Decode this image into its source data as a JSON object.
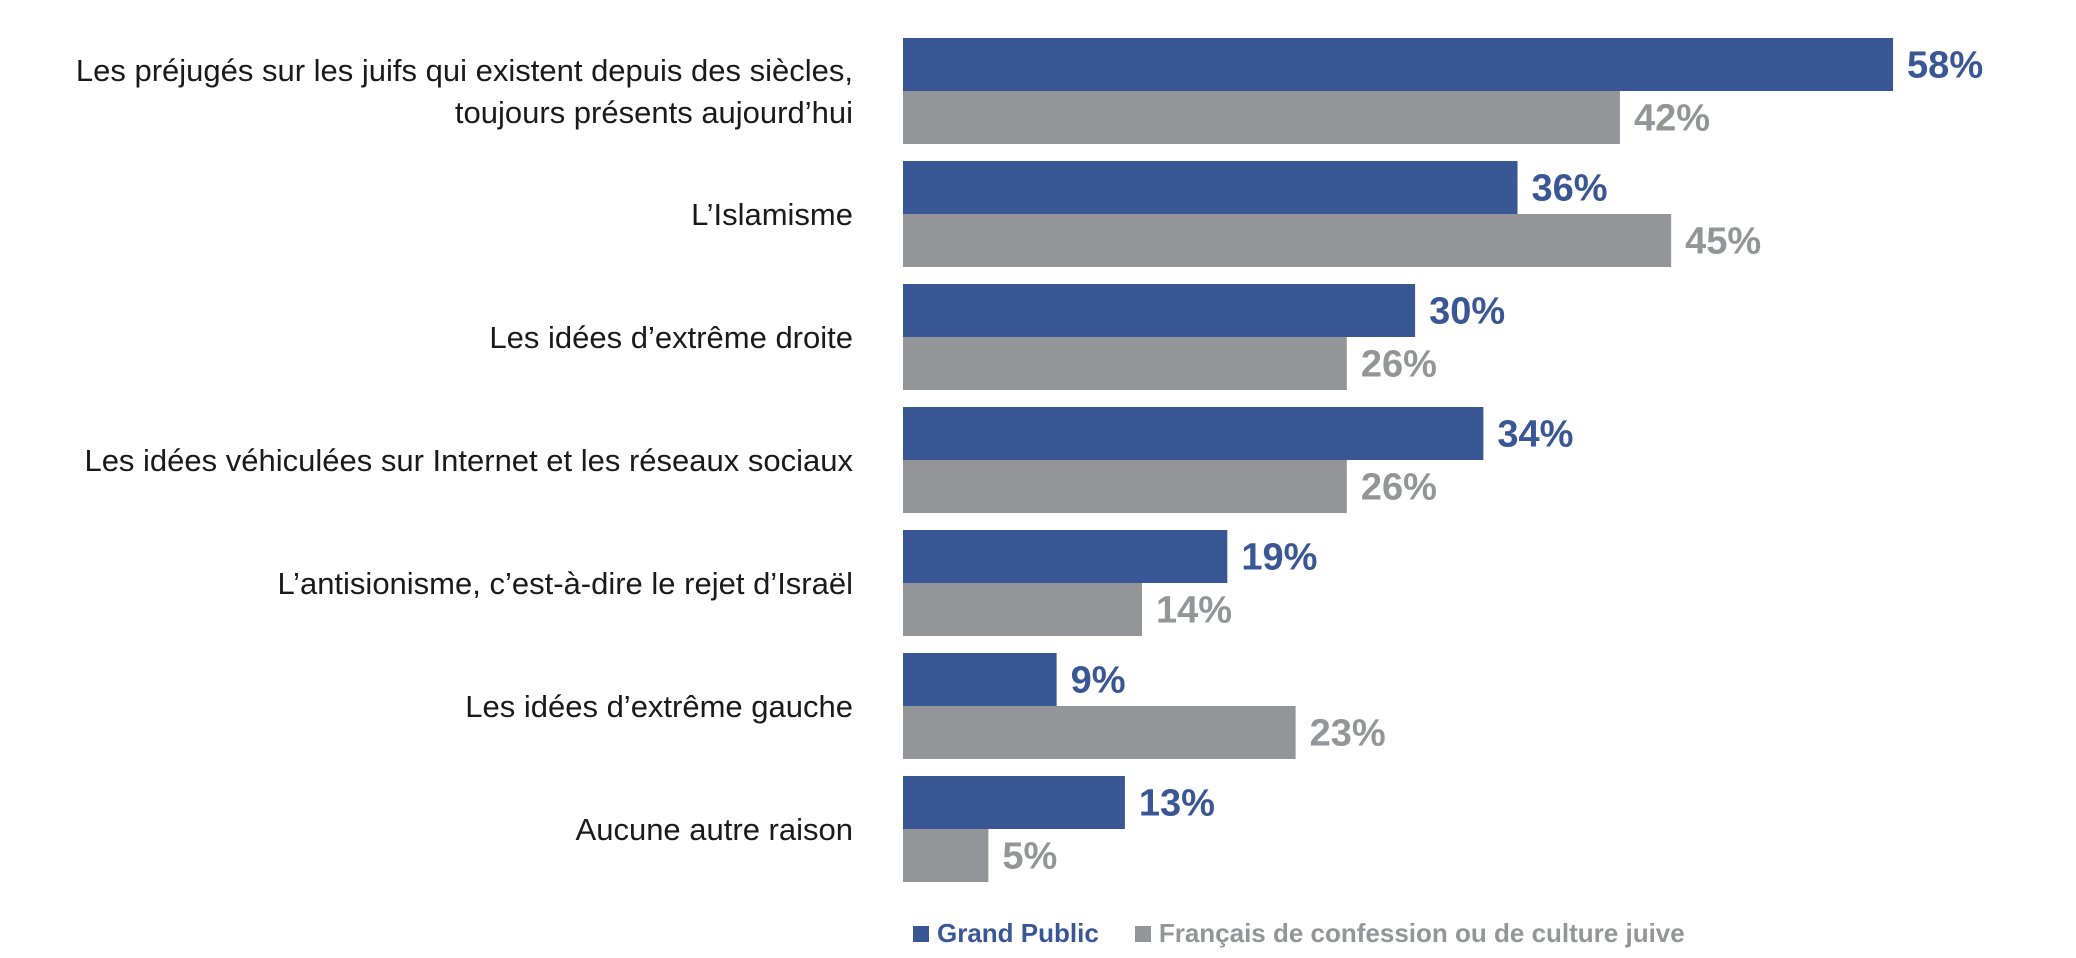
{
  "chart_data": {
    "type": "bar",
    "orientation": "horizontal",
    "categories": [
      [
        "Les préjugés sur les juifs qui existent depuis des siècles,",
        "toujours présents aujourd’hui"
      ],
      [
        "L’Islamisme"
      ],
      [
        "Les idées d’extrême droite"
      ],
      [
        "Les idées véhiculées sur Internet et les réseaux sociaux"
      ],
      [
        "L’antisionisme, c’est-à-dire le rejet d’Israël"
      ],
      [
        "Les idées d’extrême gauche"
      ],
      [
        "Aucune autre raison"
      ]
    ],
    "series": [
      {
        "name": "Grand Public",
        "color": "#3a5795",
        "values": [
          58,
          36,
          30,
          34,
          19,
          9,
          13
        ],
        "labels": [
          "58%",
          "36%",
          "30%",
          "34%",
          "19%",
          "9%",
          "13%"
        ]
      },
      {
        "name": "Français de confession ou de culture juive",
        "color": "#949598",
        "values": [
          42,
          45,
          26,
          26,
          14,
          23,
          5
        ],
        "labels": [
          "42%",
          "45%",
          "26%",
          "26%",
          "14%",
          "23%",
          "5%"
        ]
      }
    ],
    "xlim": [
      0,
      100
    ],
    "grid": false,
    "legend_position": "bottom"
  }
}
